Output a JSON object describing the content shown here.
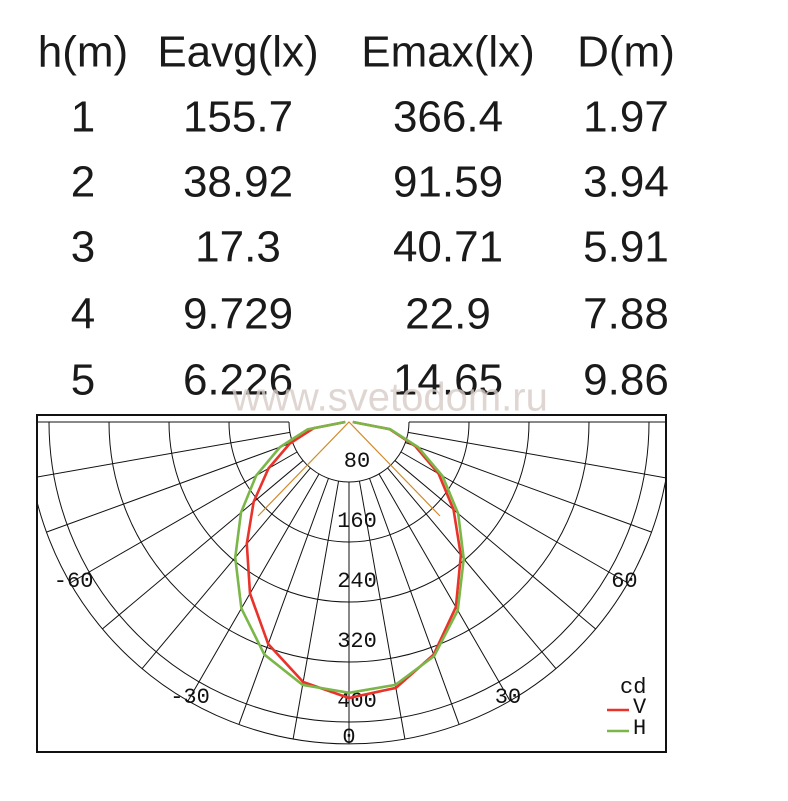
{
  "table": {
    "headers": [
      "h(m)",
      "Eavg(lx)",
      "Emax(lx)",
      "D(m)"
    ],
    "rows": [
      [
        "1",
        "155.7",
        "366.4",
        "1.97"
      ],
      [
        "2",
        "38.92",
        "91.59",
        "3.94"
      ],
      [
        "3",
        "17.3",
        "40.71",
        "5.91"
      ],
      [
        "4",
        "9.729",
        "22.9",
        "7.88"
      ],
      [
        "5",
        "6.226",
        "14.65",
        "9.86"
      ]
    ]
  },
  "watermark": "www.svetodom.ru",
  "chart_data": {
    "type": "polar",
    "unit": "cd",
    "angles": [
      -90,
      -80,
      -70,
      -60,
      -50,
      -40,
      -30,
      -20,
      -10,
      0,
      10,
      20,
      30,
      40,
      50,
      60,
      70,
      80,
      90
    ],
    "series": [
      {
        "name": "V",
        "color": "#e8322a",
        "values": [
          5,
          48,
          84,
          124,
          166,
          212,
          264,
          315,
          352,
          368,
          360,
          330,
          285,
          232,
          182,
          138,
          94,
          55,
          5
        ]
      },
      {
        "name": "H",
        "color": "#7ab648",
        "values": [
          5,
          56,
          98,
          143,
          188,
          236,
          287,
          330,
          356,
          361,
          356,
          332,
          290,
          238,
          190,
          144,
          98,
          56,
          5
        ]
      }
    ],
    "rlim": [
      0,
      400
    ],
    "rticks": [
      80,
      160,
      240,
      320,
      400
    ],
    "angle_ticks": [
      -60,
      -30,
      0,
      30,
      60
    ]
  }
}
